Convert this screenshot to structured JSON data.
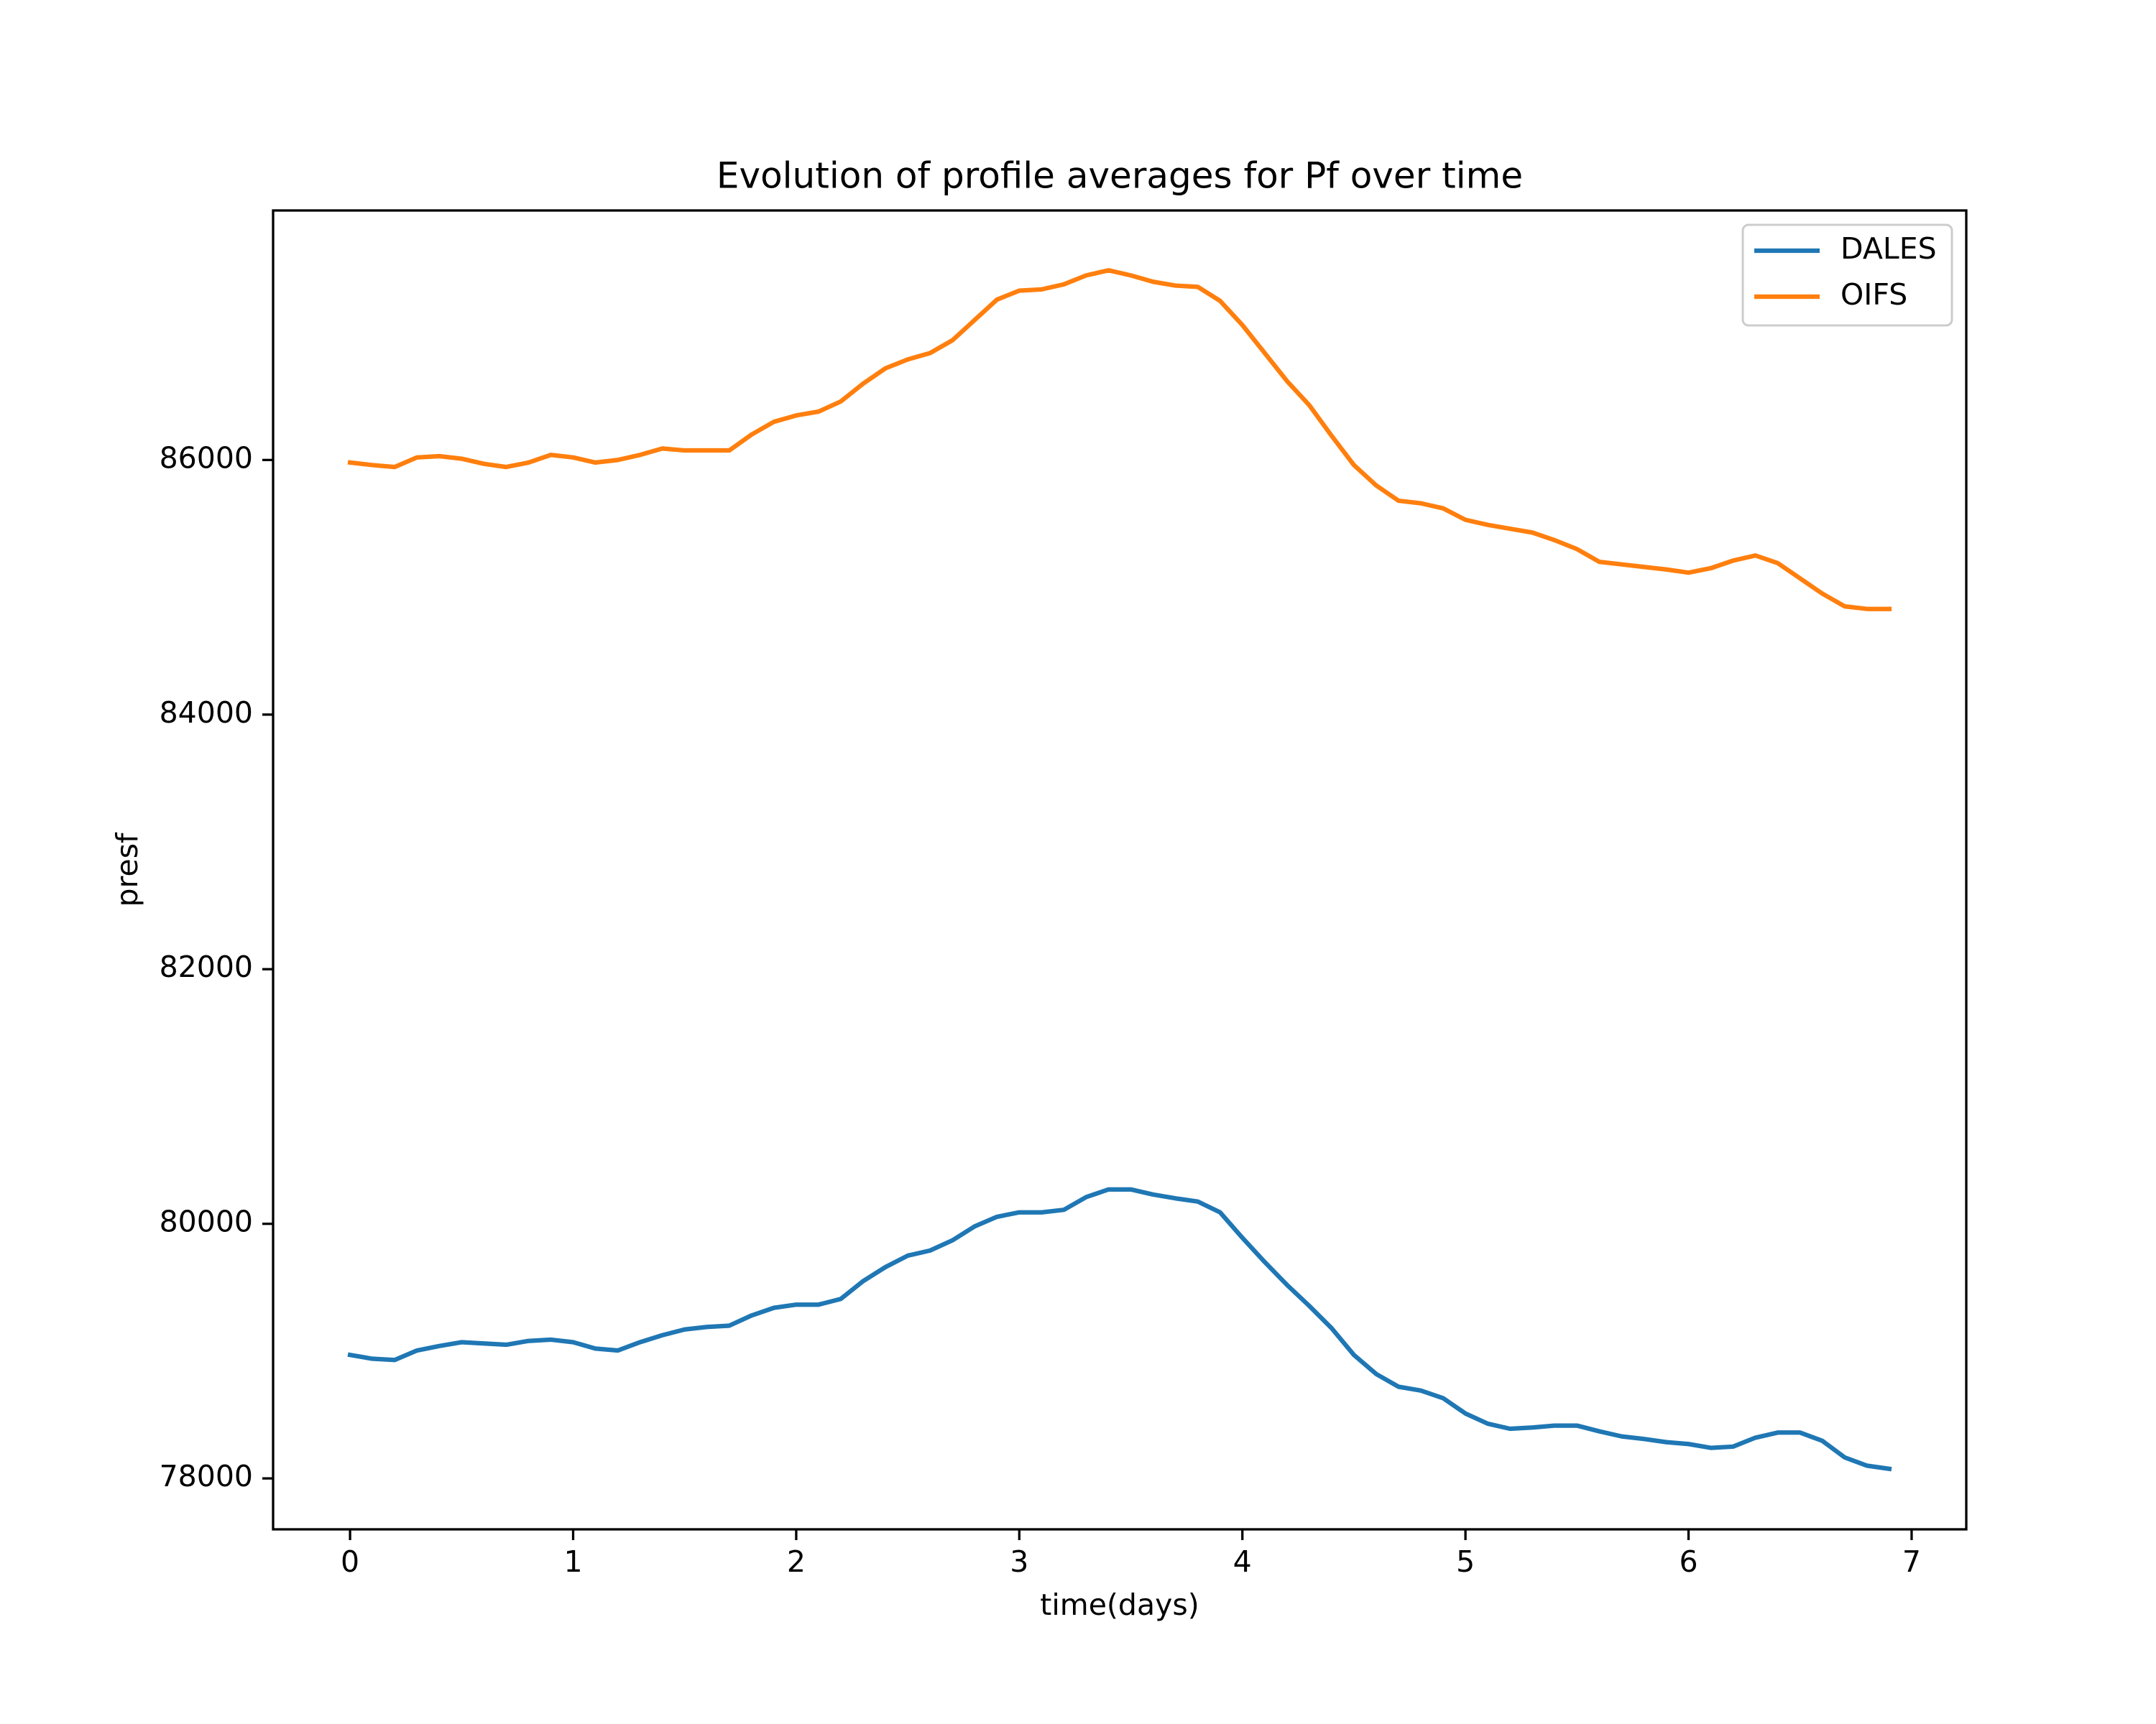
{
  "chart_data": {
    "type": "line",
    "title": "Evolution of profile averages for Pf over time",
    "xlabel": "time(days)",
    "ylabel": "presf",
    "x": [
      0,
      0.1,
      0.2,
      0.3,
      0.4,
      0.5,
      0.6,
      0.7,
      0.8,
      0.9,
      1.0,
      1.1,
      1.2,
      1.3,
      1.4,
      1.5,
      1.6,
      1.7,
      1.8,
      1.9,
      2.0,
      2.1,
      2.2,
      2.3,
      2.4,
      2.5,
      2.6,
      2.7,
      2.8,
      2.9,
      3.0,
      3.1,
      3.2,
      3.3,
      3.4,
      3.5,
      3.6,
      3.7,
      3.8,
      3.9,
      4.0,
      4.1,
      4.2,
      4.3,
      4.4,
      4.5,
      4.6,
      4.7,
      4.8,
      4.9,
      5.0,
      5.1,
      5.2,
      5.3,
      5.4,
      5.5,
      5.6,
      5.7,
      5.8,
      5.9,
      6.0,
      6.1,
      6.2,
      6.3,
      6.4,
      6.5,
      6.6,
      6.7,
      6.8,
      6.9
    ],
    "series": [
      {
        "name": "DALES",
        "color": "#1f77b4",
        "values": [
          78970,
          78940,
          78930,
          79005,
          79040,
          79070,
          79060,
          79050,
          79080,
          79090,
          79070,
          79020,
          79005,
          79070,
          79125,
          79170,
          79190,
          79200,
          79280,
          79340,
          79365,
          79365,
          79410,
          79550,
          79660,
          79750,
          79790,
          79870,
          79980,
          80055,
          80090,
          80090,
          80110,
          80210,
          80270,
          80270,
          80230,
          80200,
          80175,
          80090,
          79890,
          79700,
          79520,
          79355,
          79180,
          78970,
          78820,
          78720,
          78690,
          78630,
          78510,
          78430,
          78390,
          78400,
          78415,
          78415,
          78370,
          78330,
          78310,
          78285,
          78270,
          78240,
          78250,
          78320,
          78360,
          78360,
          78295,
          78165,
          78100,
          78075
        ]
      },
      {
        "name": "OIFS",
        "color": "#ff7f0e",
        "values": [
          85980,
          85960,
          85945,
          86020,
          86030,
          86010,
          85970,
          85945,
          85980,
          86040,
          86020,
          85980,
          86000,
          86040,
          86090,
          86075,
          86075,
          86075,
          86200,
          86300,
          86350,
          86380,
          86460,
          86600,
          86720,
          86790,
          86840,
          86940,
          87100,
          87260,
          87330,
          87340,
          87380,
          87450,
          87490,
          87450,
          87400,
          87370,
          87360,
          87250,
          87060,
          86840,
          86620,
          86430,
          86190,
          85960,
          85800,
          85680,
          85660,
          85620,
          85530,
          85490,
          85460,
          85430,
          85370,
          85300,
          85200,
          85180,
          85160,
          85140,
          85115,
          85150,
          85210,
          85250,
          85190,
          85070,
          84950,
          84850,
          84830,
          84830
        ]
      }
    ],
    "xlim": [
      -0.345,
      7.245
    ],
    "xticks": [
      0,
      1,
      2,
      3,
      4,
      5,
      6,
      7
    ],
    "ylim": [
      77600,
      87960
    ],
    "yticks": [
      78000,
      80000,
      82000,
      84000,
      86000
    ],
    "legend": "upper right"
  }
}
